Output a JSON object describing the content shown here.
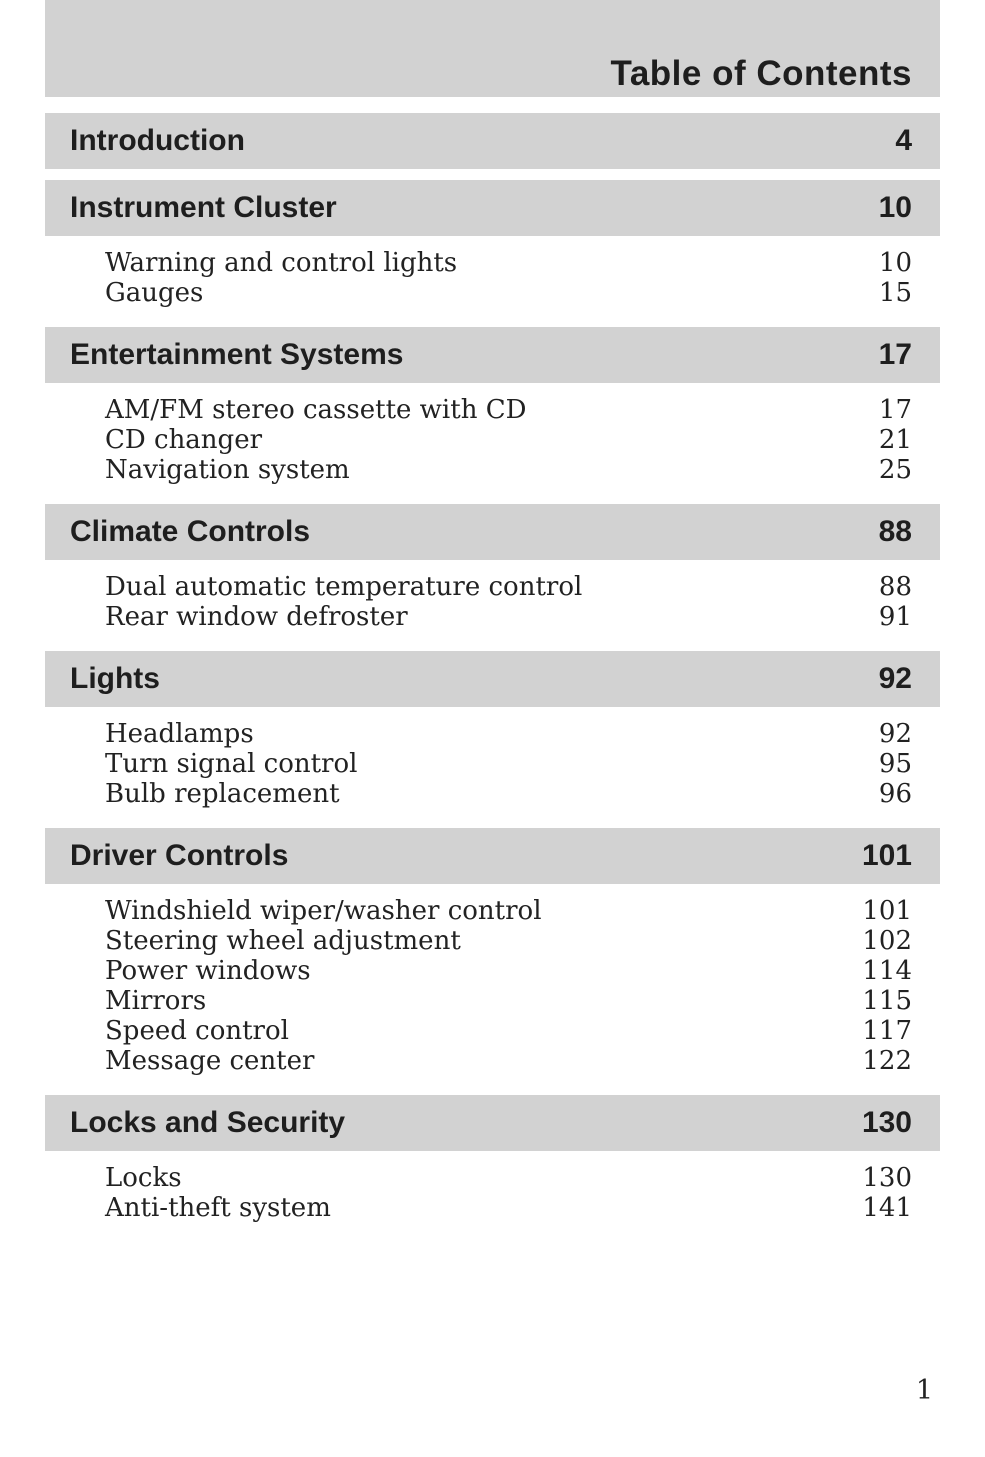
{
  "page": {
    "header_title": "Table of Contents",
    "folio_number": "1",
    "bar_gray": "#d2d2d2",
    "text_color": "#1e1e1e"
  },
  "sections": [
    {
      "title": "Introduction",
      "page": "4",
      "items": []
    },
    {
      "title": "Instrument Cluster",
      "page": "10",
      "items": [
        {
          "label": "Warning and control lights",
          "page": "10"
        },
        {
          "label": "Gauges",
          "page": "15"
        }
      ]
    },
    {
      "title": "Entertainment Systems",
      "page": "17",
      "items": [
        {
          "label": "AM/FM stereo cassette with CD",
          "page": "17"
        },
        {
          "label": "CD changer",
          "page": "21"
        },
        {
          "label": "Navigation system",
          "page": "25"
        }
      ]
    },
    {
      "title": "Climate Controls",
      "page": "88",
      "items": [
        {
          "label": "Dual automatic temperature control",
          "page": "88"
        },
        {
          "label": "Rear window defroster",
          "page": "91"
        }
      ]
    },
    {
      "title": "Lights",
      "page": "92",
      "items": [
        {
          "label": "Headlamps",
          "page": "92"
        },
        {
          "label": "Turn signal control",
          "page": "95"
        },
        {
          "label": "Bulb replacement",
          "page": "96"
        }
      ]
    },
    {
      "title": "Driver Controls",
      "page": "101",
      "items": [
        {
          "label": "Windshield wiper/washer control",
          "page": "101"
        },
        {
          "label": "Steering wheel adjustment",
          "page": "102"
        },
        {
          "label": "Power windows",
          "page": "114"
        },
        {
          "label": "Mirrors",
          "page": "115"
        },
        {
          "label": "Speed control",
          "page": "117"
        },
        {
          "label": "Message center",
          "page": "122"
        }
      ]
    },
    {
      "title": "Locks and Security",
      "page": "130",
      "items": [
        {
          "label": "Locks",
          "page": "130"
        },
        {
          "label": "Anti-theft system",
          "page": "141"
        }
      ]
    }
  ]
}
